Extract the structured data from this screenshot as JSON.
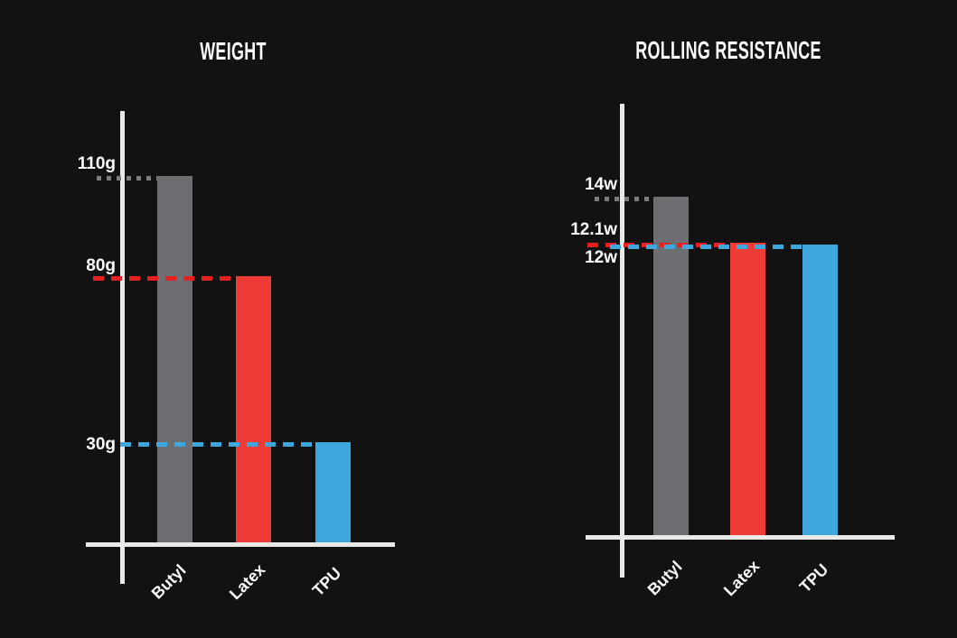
{
  "page": {
    "background_color": "#121213",
    "axis_color": "#e9e9e7",
    "text_color": "#fdfdfd"
  },
  "chart_data": [
    {
      "type": "bar",
      "title": "WEIGHT",
      "unit": "g",
      "categories": [
        "Butyl",
        "Latex",
        "TPU"
      ],
      "values": [
        110,
        80,
        30
      ],
      "value_labels": [
        "110g",
        "80g",
        "30g"
      ],
      "bar_colors": [
        "#6d6e71",
        "#ef3b36",
        "#3ea7de"
      ],
      "guide_lines": [
        {
          "value": 110,
          "label": "110g",
          "style": "dotted",
          "color": "#7c7d80"
        },
        {
          "value": 80,
          "label": "80g",
          "style": "dashed",
          "color": "#e62020"
        },
        {
          "value": 30,
          "label": "30g",
          "style": "dashed",
          "color": "#3ea7de"
        }
      ],
      "xlabel": "",
      "ylabel": "",
      "ylim": [
        0,
        130
      ],
      "grid": false,
      "legend": false
    },
    {
      "type": "bar",
      "title": "ROLLING RESISTANCE",
      "unit": "w",
      "categories": [
        "Butyl",
        "Latex",
        "TPU"
      ],
      "values": [
        14,
        12.1,
        12
      ],
      "value_labels": [
        "14w",
        "12.1w",
        "12w"
      ],
      "bar_colors": [
        "#6d6e71",
        "#ef3b36",
        "#3ea7de"
      ],
      "guide_lines": [
        {
          "value": 14,
          "label": "14w",
          "style": "dotted",
          "color": "#7c7d80"
        },
        {
          "value": 12.1,
          "label": "12.1w",
          "style": "dashed",
          "color": "#e62020"
        },
        {
          "value": 12,
          "label": "12w",
          "style": "dashed",
          "color": "#3ea7de"
        }
      ],
      "xlabel": "",
      "ylabel": "",
      "ylim": [
        0,
        18
      ],
      "grid": false,
      "legend": false
    }
  ]
}
